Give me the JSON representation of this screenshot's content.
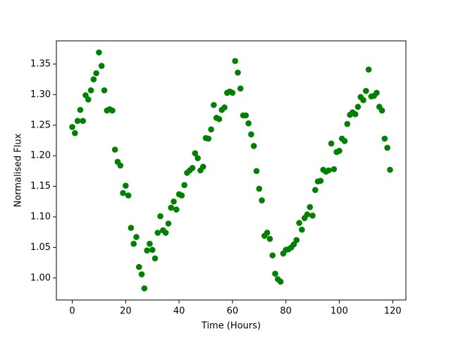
{
  "chart_data": {
    "type": "scatter",
    "x_label": "Time (Hours)",
    "y_label": "Normalised Flux",
    "color": "#008000",
    "x": [
      0,
      1,
      2,
      3,
      4,
      5,
      6,
      7,
      8,
      9,
      10,
      11,
      12,
      13,
      14,
      15,
      16,
      17,
      18,
      19,
      20,
      21,
      22,
      23,
      24,
      25,
      26,
      27,
      28,
      29,
      30,
      31,
      32,
      33,
      34,
      35,
      36,
      37,
      38,
      39,
      40,
      41,
      42,
      43,
      44,
      45,
      46,
      47,
      48,
      49,
      50,
      51,
      52,
      53,
      54,
      55,
      56,
      57,
      58,
      59,
      60,
      61,
      62,
      63,
      64,
      65,
      66,
      67,
      68,
      69,
      70,
      71,
      72,
      73,
      74,
      75,
      76,
      77,
      78,
      79,
      80,
      81,
      82,
      83,
      84,
      85,
      86,
      87,
      88,
      89,
      90,
      91,
      92,
      93,
      94,
      95,
      96,
      97,
      98,
      99,
      100,
      101,
      102,
      103,
      104,
      105,
      106,
      107,
      108,
      109,
      110,
      111,
      112,
      113,
      114,
      115,
      116,
      117,
      118,
      119
    ],
    "values": [
      1.247,
      1.237,
      1.257,
      1.275,
      1.257,
      1.299,
      1.292,
      1.307,
      1.325,
      1.335,
      1.369,
      1.347,
      1.307,
      1.274,
      1.276,
      1.274,
      1.21,
      1.19,
      1.184,
      1.139,
      1.151,
      1.135,
      1.082,
      1.056,
      1.067,
      1.018,
      1.006,
      0.983,
      1.045,
      1.056,
      1.046,
      1.032,
      1.074,
      1.101,
      1.078,
      1.074,
      1.089,
      1.115,
      1.125,
      1.112,
      1.137,
      1.135,
      1.152,
      1.172,
      1.176,
      1.18,
      1.204,
      1.196,
      1.176,
      1.182,
      1.229,
      1.228,
      1.243,
      1.283,
      1.262,
      1.26,
      1.275,
      1.279,
      1.303,
      1.305,
      1.303,
      1.355,
      1.336,
      1.31,
      1.266,
      1.266,
      1.253,
      1.235,
      1.216,
      1.175,
      1.146,
      1.127,
      1.069,
      1.074,
      1.064,
      1.037,
      1.007,
      0.998,
      0.994,
      1.04,
      1.046,
      1.047,
      1.05,
      1.055,
      1.062,
      1.09,
      1.079,
      1.098,
      1.104,
      1.116,
      1.102,
      1.144,
      1.158,
      1.159,
      1.177,
      1.174,
      1.176,
      1.22,
      1.178,
      1.206,
      1.208,
      1.228,
      1.224,
      1.252,
      1.267,
      1.271,
      1.268,
      1.28,
      1.296,
      1.291,
      1.306,
      1.341,
      1.297,
      1.298,
      1.303,
      1.28,
      1.274,
      1.228,
      1.213,
      1.177
    ],
    "xlim": [
      -5.95,
      124.95
    ],
    "xticks": [
      0,
      20,
      40,
      60,
      80,
      100,
      120
    ],
    "ylim": [
      0.964,
      1.388
    ],
    "yticks": [
      {
        "value": 1.0,
        "label": "1.00"
      },
      1.05,
      {
        "value": 1.1,
        "label": "1.10"
      },
      1.15,
      {
        "value": 1.2,
        "label": "1.20"
      },
      1.25,
      {
        "value": 1.3,
        "label": "1.30"
      },
      1.35
    ]
  }
}
